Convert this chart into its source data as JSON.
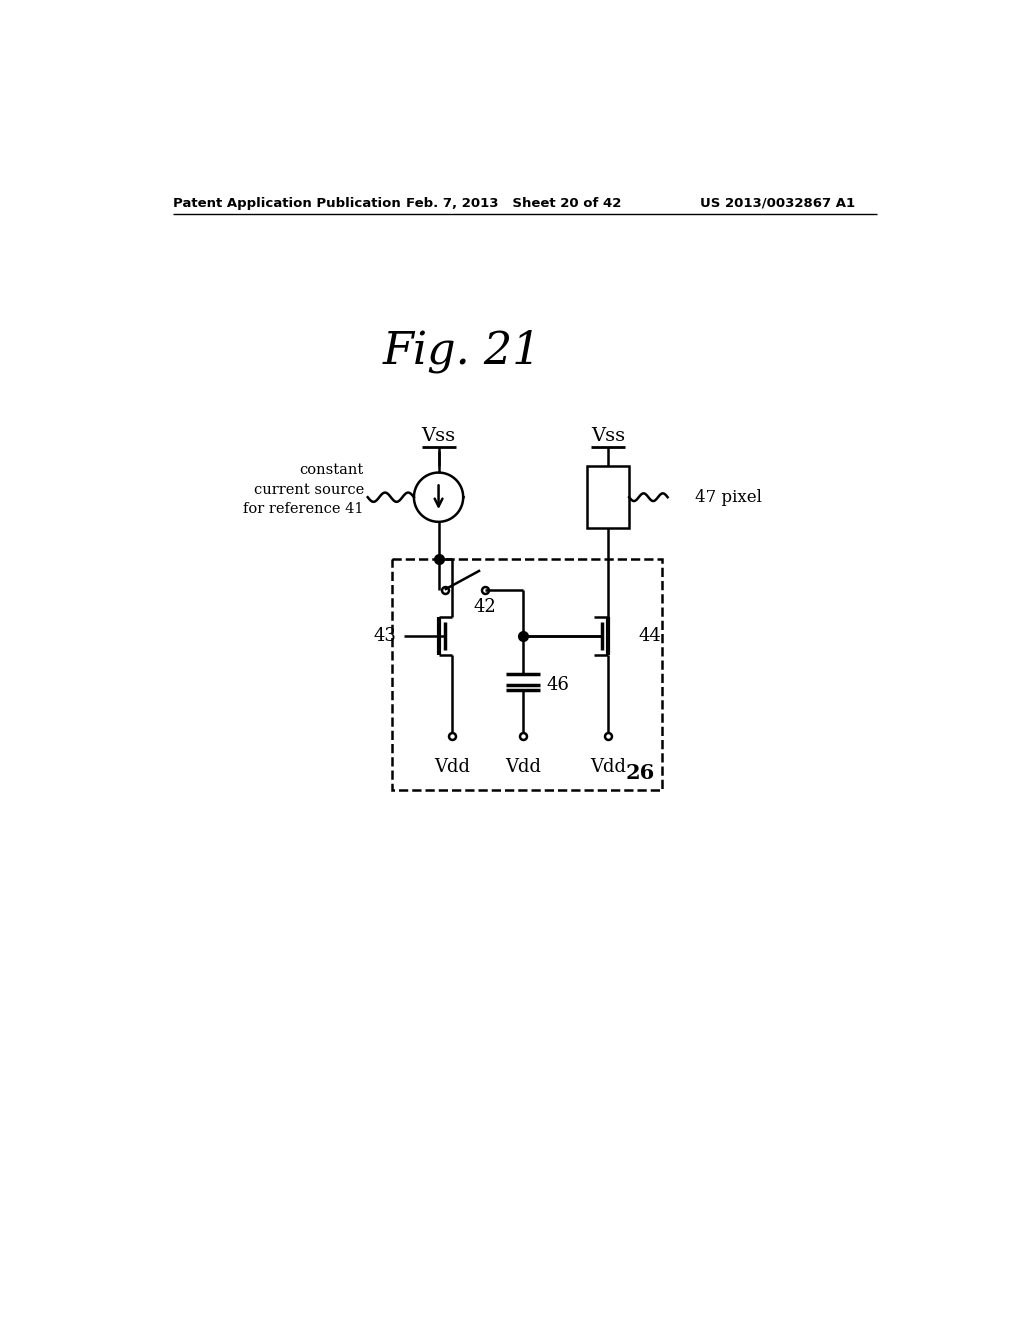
{
  "title": "Fig. 21",
  "header_left": "Patent Application Publication",
  "header_mid": "Feb. 7, 2013   Sheet 20 of 42",
  "header_right": "US 2013/0032867 A1",
  "bg_color": "#ffffff",
  "line_color": "#000000",
  "label_vss1": "Vss",
  "label_vss2": "Vss",
  "label_vdd1": "Vdd",
  "label_vdd2": "Vdd",
  "label_vdd3": "Vdd",
  "label_42": "42",
  "label_43": "43",
  "label_44": "44",
  "label_46": "46",
  "label_26": "26",
  "label_47": "47 pixel",
  "label_cs": "constant\ncurrent source\nfor reference 41"
}
